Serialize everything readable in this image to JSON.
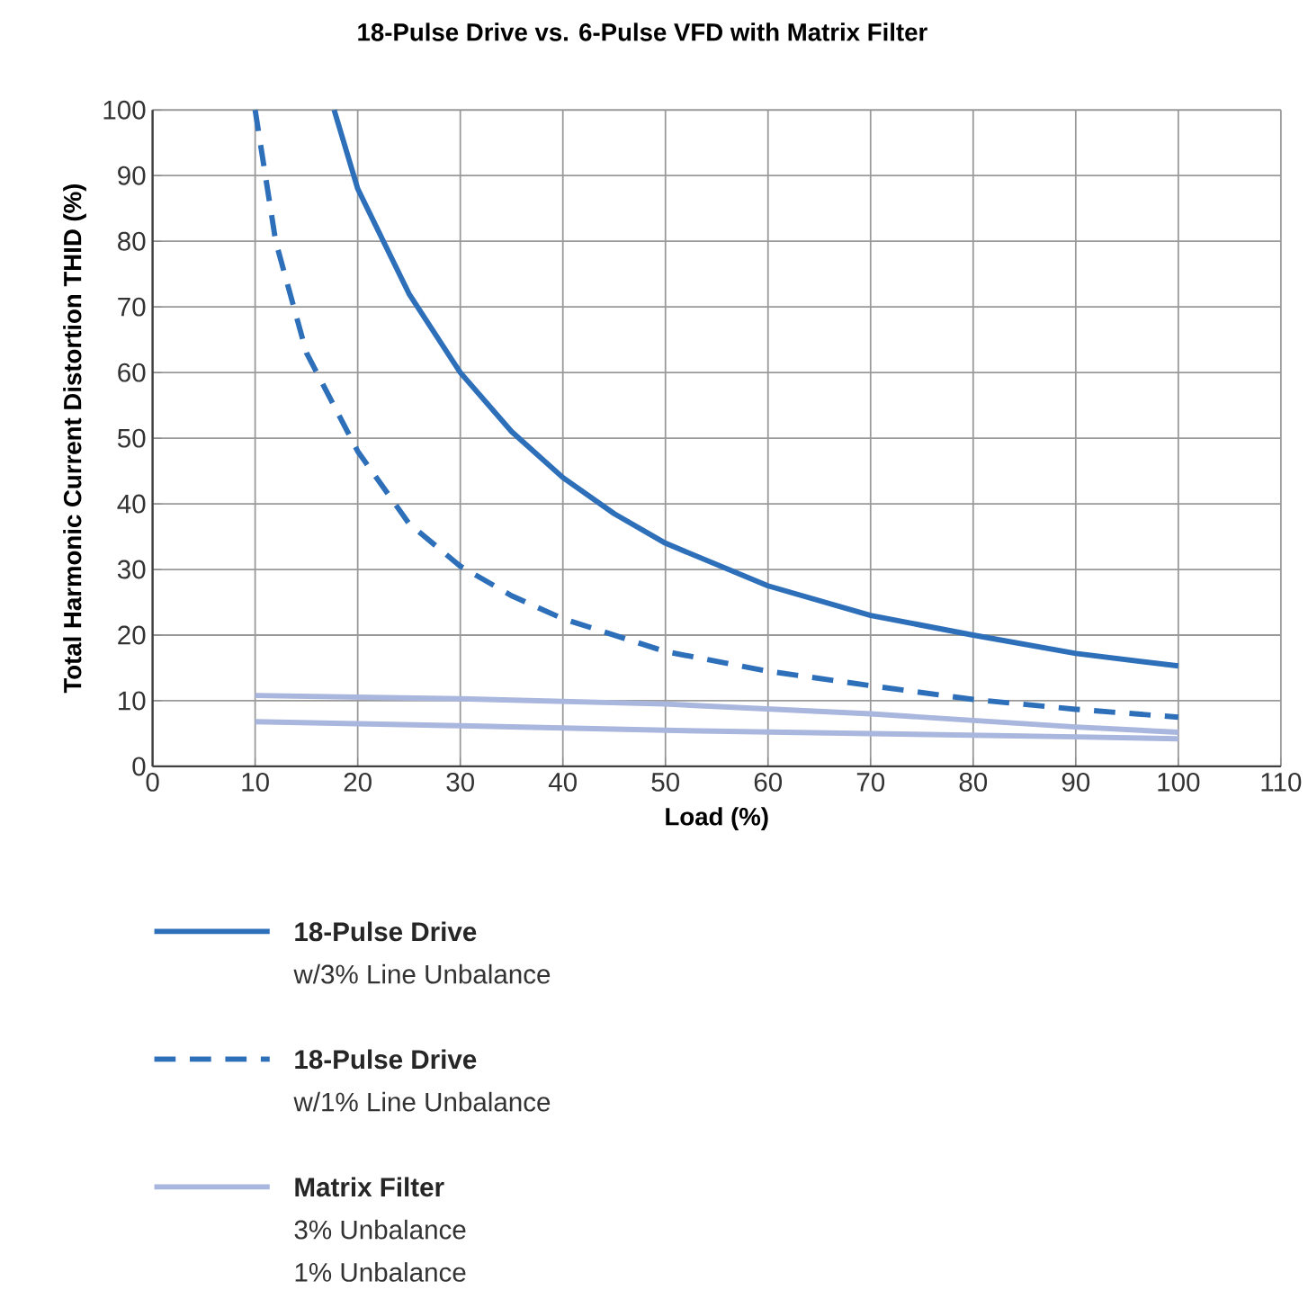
{
  "chart_data": {
    "type": "line",
    "title": "18-Pulse Drive vs. 6-Pulse VFD with Matrix Filter",
    "xlabel": "Load (%)",
    "ylabel": "Total Harmonic Current Distortion THID (%)",
    "xlim": [
      0,
      110
    ],
    "ylim": [
      0,
      100
    ],
    "xticks": [
      0,
      10,
      20,
      30,
      40,
      50,
      60,
      70,
      80,
      90,
      100,
      110
    ],
    "yticks": [
      0,
      10,
      20,
      30,
      40,
      50,
      60,
      70,
      80,
      90,
      100
    ],
    "grid": true,
    "legend": "bottom",
    "marker": "none",
    "annotations": [
      "w/3% Line Unbalance",
      "w/1% Line Unbalance",
      "3% Unbalance",
      "1% Unbalance"
    ],
    "series": [
      {
        "name": "18-Pulse Drive",
        "color": "#2e6fba",
        "line_style": "solid",
        "x": [
          17.7,
          20,
          25,
          30,
          35,
          40,
          45,
          50,
          60,
          70,
          80,
          90,
          100
        ],
        "values": [
          100,
          88,
          72,
          60,
          51,
          44,
          38.5,
          34,
          27.5,
          23,
          20,
          17.2,
          15.3
        ]
      },
      {
        "name": "18-Pulse Drive",
        "color": "#2e6fba",
        "line_style": "dashed",
        "x": [
          10,
          12,
          15,
          20,
          25,
          30,
          35,
          40,
          50,
          60,
          70,
          80,
          90,
          100
        ],
        "values": [
          100,
          80,
          63,
          48,
          37,
          30.5,
          26,
          22.5,
          17.5,
          14.5,
          12.3,
          10.2,
          8.7,
          7.5
        ]
      },
      {
        "name": "Matrix Filter",
        "color": "#a9b6dd",
        "line_style": "solid",
        "x": [
          10,
          30,
          50,
          70,
          90,
          100
        ],
        "values": [
          10.8,
          10.3,
          9.5,
          8,
          6,
          5.2
        ]
      },
      {
        "color": "#a9b6dd",
        "line_style": "solid",
        "x": [
          10,
          30,
          50,
          70,
          90,
          100
        ],
        "values": [
          6.8,
          6.2,
          5.5,
          5,
          4.5,
          4.2
        ]
      }
    ]
  }
}
